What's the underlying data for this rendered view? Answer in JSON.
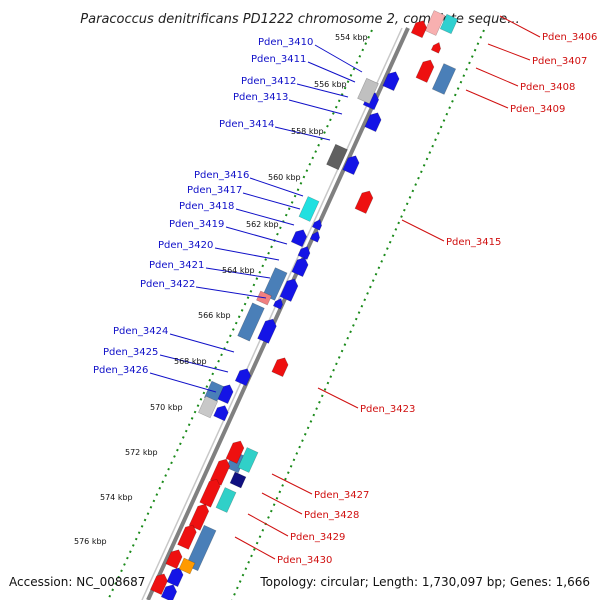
{
  "title": "Paracoccus denitrificans PD1222 chromosome 2, complete seque...",
  "accession": "Accession: NC_008687",
  "topology": "Topology: circular; Length: 1,730,097 bp; Genes: 1,666",
  "colors": {
    "backbone": "#808080",
    "ticks": "#1a8a1a",
    "left_label": "#1010c8",
    "right_label": "#d01010"
  },
  "kbp_ticks": [
    "554 kbp",
    "556 kbp",
    "558 kbp",
    "560 kbp",
    "562 kbp",
    "564 kbp",
    "566 kbp",
    "568 kbp",
    "570 kbp",
    "572 kbp",
    "574 kbp",
    "576 kbp"
  ],
  "genes_left": [
    "Pden_3410",
    "Pden_3411",
    "Pden_3412",
    "Pden_3413",
    "Pden_3414",
    "Pden_3416",
    "Pden_3417",
    "Pden_3418",
    "Pden_3419",
    "Pden_3420",
    "Pden_3421",
    "Pden_3422",
    "Pden_3424",
    "Pden_3425",
    "Pden_3426"
  ],
  "genes_right": [
    "Pden_3406",
    "Pden_3407",
    "Pden_3408",
    "Pden_3409",
    "Pden_3415",
    "Pden_3423",
    "Pden_3427",
    "Pden_3428",
    "Pden_3429",
    "Pden_3430"
  ]
}
